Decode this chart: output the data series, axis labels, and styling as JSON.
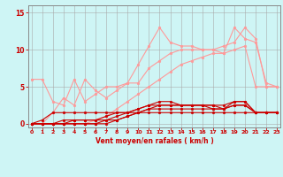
{
  "x": [
    0,
    1,
    2,
    3,
    4,
    5,
    6,
    7,
    8,
    9,
    10,
    11,
    12,
    13,
    14,
    15,
    16,
    17,
    18,
    19,
    20,
    21,
    22,
    23
  ],
  "series": [
    {
      "color": "#ff9999",
      "linewidth": 0.8,
      "markersize": 2.0,
      "y": [
        6.0,
        6.0,
        3.0,
        2.5,
        6.0,
        3.0,
        4.0,
        5.0,
        5.0,
        5.5,
        8.0,
        10.5,
        13.0,
        11.0,
        10.5,
        10.5,
        10.0,
        10.0,
        9.5,
        13.0,
        11.5,
        11.0,
        5.5,
        5.0
      ]
    },
    {
      "color": "#ff9999",
      "linewidth": 0.8,
      "markersize": 2.0,
      "y": [
        0.0,
        0.0,
        1.5,
        3.5,
        2.5,
        6.0,
        4.5,
        3.5,
        4.5,
        5.5,
        5.5,
        7.5,
        8.5,
        9.5,
        10.0,
        10.0,
        10.0,
        10.0,
        10.5,
        11.0,
        13.0,
        11.5,
        5.0,
        5.0
      ]
    },
    {
      "color": "#ff9999",
      "linewidth": 0.8,
      "markersize": 2.0,
      "y": [
        0.0,
        0.0,
        0.0,
        0.0,
        0.0,
        0.0,
        0.5,
        1.0,
        2.0,
        3.0,
        4.0,
        5.0,
        6.0,
        7.0,
        8.0,
        8.5,
        9.0,
        9.5,
        9.5,
        10.0,
        10.5,
        5.0,
        5.0,
        5.0
      ]
    },
    {
      "color": "#cc0000",
      "linewidth": 0.8,
      "markersize": 2.0,
      "y": [
        0.0,
        0.0,
        0.0,
        0.0,
        0.0,
        0.0,
        0.0,
        0.5,
        1.0,
        1.5,
        2.0,
        2.5,
        3.0,
        3.0,
        2.5,
        2.5,
        2.5,
        2.5,
        2.0,
        3.0,
        3.0,
        1.5,
        1.5,
        1.5
      ]
    },
    {
      "color": "#cc0000",
      "linewidth": 0.8,
      "markersize": 2.0,
      "y": [
        0.0,
        0.0,
        0.0,
        0.0,
        0.0,
        0.0,
        0.0,
        0.0,
        0.5,
        1.0,
        1.5,
        2.0,
        2.5,
        2.5,
        2.5,
        2.5,
        2.5,
        2.0,
        2.0,
        2.5,
        2.5,
        1.5,
        1.5,
        1.5
      ]
    },
    {
      "color": "#cc0000",
      "linewidth": 0.8,
      "markersize": 2.0,
      "y": [
        0.0,
        0.5,
        1.5,
        1.5,
        1.5,
        1.5,
        1.5,
        1.5,
        1.5,
        1.5,
        1.5,
        1.5,
        1.5,
        1.5,
        1.5,
        1.5,
        1.5,
        1.5,
        1.5,
        1.5,
        1.5,
        1.5,
        1.5,
        1.5
      ]
    },
    {
      "color": "#cc0000",
      "linewidth": 0.8,
      "markersize": 2.0,
      "y": [
        0.0,
        0.0,
        0.0,
        0.0,
        0.5,
        0.5,
        0.5,
        1.0,
        1.5,
        1.5,
        2.0,
        2.5,
        2.5,
        2.5,
        2.5,
        2.5,
        2.5,
        2.5,
        2.5,
        3.0,
        3.0,
        1.5,
        1.5,
        1.5
      ]
    },
    {
      "color": "#cc0000",
      "linewidth": 0.8,
      "markersize": 2.0,
      "y": [
        0.0,
        0.0,
        0.0,
        0.5,
        0.5,
        0.5,
        0.5,
        0.5,
        0.5,
        1.0,
        1.5,
        2.0,
        2.0,
        2.0,
        2.0,
        2.0,
        2.0,
        2.0,
        2.0,
        2.5,
        2.5,
        1.5,
        1.5,
        1.5
      ]
    }
  ],
  "xlabel": "Vent moyen/en rafales ( km/h )",
  "xlim": [
    -0.3,
    23.3
  ],
  "ylim": [
    -0.5,
    16.0
  ],
  "yticks": [
    0,
    5,
    10,
    15
  ],
  "xticks": [
    0,
    1,
    2,
    3,
    4,
    5,
    6,
    7,
    8,
    9,
    10,
    11,
    12,
    13,
    14,
    15,
    16,
    17,
    18,
    19,
    20,
    21,
    22,
    23
  ],
  "bg_color": "#cef5f5",
  "grid_color": "#aaaaaa",
  "label_color": "#cc0000",
  "tick_color": "#cc0000",
  "spine_color": "#888888"
}
